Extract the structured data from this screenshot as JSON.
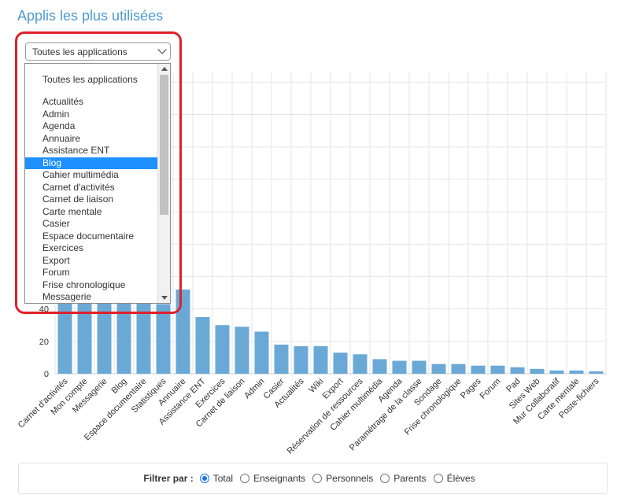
{
  "page": {
    "title": "Applis les plus utilisées"
  },
  "app_select": {
    "selected": "Toutes les applications",
    "options": [
      "Toutes les applications",
      "Actualités",
      "Admin",
      "Agenda",
      "Annuaire",
      "Assistance ENT",
      "Blog",
      "Cahier multimédia",
      "Carnet d'activités",
      "Carnet de liaison",
      "Carte mentale",
      "Casier",
      "Espace documentaire",
      "Exercices",
      "Export",
      "Forum",
      "Frise chronologique",
      "Messagerie"
    ],
    "highlighted": "Blog"
  },
  "filter": {
    "label": "Filtrer par :",
    "options": [
      {
        "label": "Total",
        "checked": true
      },
      {
        "label": "Enseignants",
        "checked": false
      },
      {
        "label": "Personnels",
        "checked": false
      },
      {
        "label": "Parents",
        "checked": false
      },
      {
        "label": "Élèves",
        "checked": false
      }
    ]
  },
  "colors": {
    "bar": "#6aa9d6",
    "accent": "#4f9bd1",
    "highlight_frame": "#e0202a",
    "selected_option": "#1e90ff"
  },
  "chart_data": {
    "type": "bar",
    "categories": [
      "Carnet d'activités",
      "Mon compte",
      "Messagerie",
      "Blog",
      "Espace documentaire",
      "Statistiques",
      "Annuaire",
      "Assistance ENT",
      "Exercices",
      "Carnet de liaison",
      "Admin",
      "Casier",
      "Actualités",
      "Wiki",
      "Export",
      "Réservation de ressources",
      "Cahier multimédia",
      "Agenda",
      "Paramétrage de la classe",
      "Sondage",
      "Frise chronologique",
      "Pages",
      "Forum",
      "Pad",
      "Sites Web",
      "Mur Collaboratif",
      "Carte mentale",
      "Poste-fichiers"
    ],
    "values": [
      50,
      48,
      46,
      45,
      44,
      43,
      52,
      35,
      30,
      29,
      26,
      18,
      17,
      17,
      13,
      12,
      9,
      8,
      8,
      6,
      6,
      5,
      5,
      4,
      3,
      2,
      2,
      1.5
    ],
    "y_ticks": [
      0,
      20,
      40
    ],
    "ylim": [
      0,
      186
    ],
    "grid": true,
    "legend": "none"
  }
}
